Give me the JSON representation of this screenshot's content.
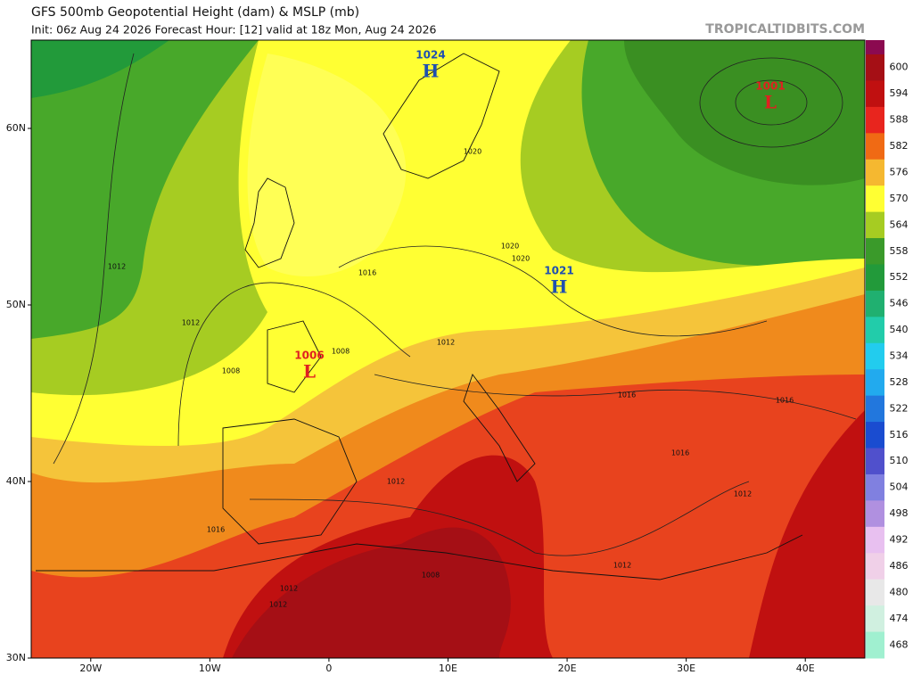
{
  "header": {
    "title": "GFS 500mb Geopotential Height (dam) & MSLP (mb)",
    "subtitle": "Init: 06z Aug 24 2026   Forecast Hour: [12]   valid at 18z Mon, Aug 24 2026",
    "site": "TROPICALTIDBITS.COM"
  },
  "map": {
    "xlim": [
      -25,
      45
    ],
    "ylim": [
      30,
      65
    ],
    "xticks": [
      {
        "value": -20,
        "label": "20W"
      },
      {
        "value": -10,
        "label": "10W"
      },
      0,
      {
        "value": 10,
        "label": "10E"
      },
      {
        "value": 20,
        "label": "20E"
      },
      {
        "value": 30,
        "label": "30E"
      },
      {
        "value": 40,
        "label": "40E"
      }
    ],
    "yticks": [
      {
        "value": 60,
        "label": "60N"
      },
      {
        "value": 50,
        "label": "50N"
      },
      {
        "value": 40,
        "label": "40N"
      },
      {
        "value": 30,
        "label": "30N"
      }
    ],
    "pressure_centers": [
      {
        "value": 1024,
        "kind": "H",
        "color": "#1f4fb0"
      },
      {
        "value": 1021,
        "kind": "H",
        "color": "#1f4fb0"
      },
      {
        "value": 1006,
        "kind": "L",
        "color": "#e02020"
      },
      {
        "value": 1001,
        "kind": "L",
        "color": "#e02020"
      }
    ],
    "isobar_labels": [
      1012,
      1012,
      1008,
      1016,
      1008,
      1020,
      1020,
      1020,
      1012,
      1016,
      1016,
      1016,
      1012,
      1012,
      1016,
      1012,
      1012,
      1008,
      1012
    ]
  },
  "colorbar": {
    "levels": [
      600,
      594,
      588,
      582,
      576,
      570,
      564,
      558,
      552,
      546,
      540,
      534,
      528,
      522,
      516,
      510,
      504,
      498,
      492,
      486,
      480,
      474,
      468
    ],
    "colors": [
      "#a50f15",
      "#c01010",
      "#e8251e",
      "#f06a14",
      "#f5b830",
      "#ffff33",
      "#a6cc22",
      "#3a9a2a",
      "#229a3a",
      "#20b070",
      "#22ccaa",
      "#22ccee",
      "#22aaee",
      "#2277dd",
      "#1a4cd0",
      "#5050cc",
      "#8080e0",
      "#b090e0",
      "#e8c0f0",
      "#f0d0e8",
      "#e8e8e8",
      "#d0f0e0",
      "#a0f0d0"
    ]
  }
}
